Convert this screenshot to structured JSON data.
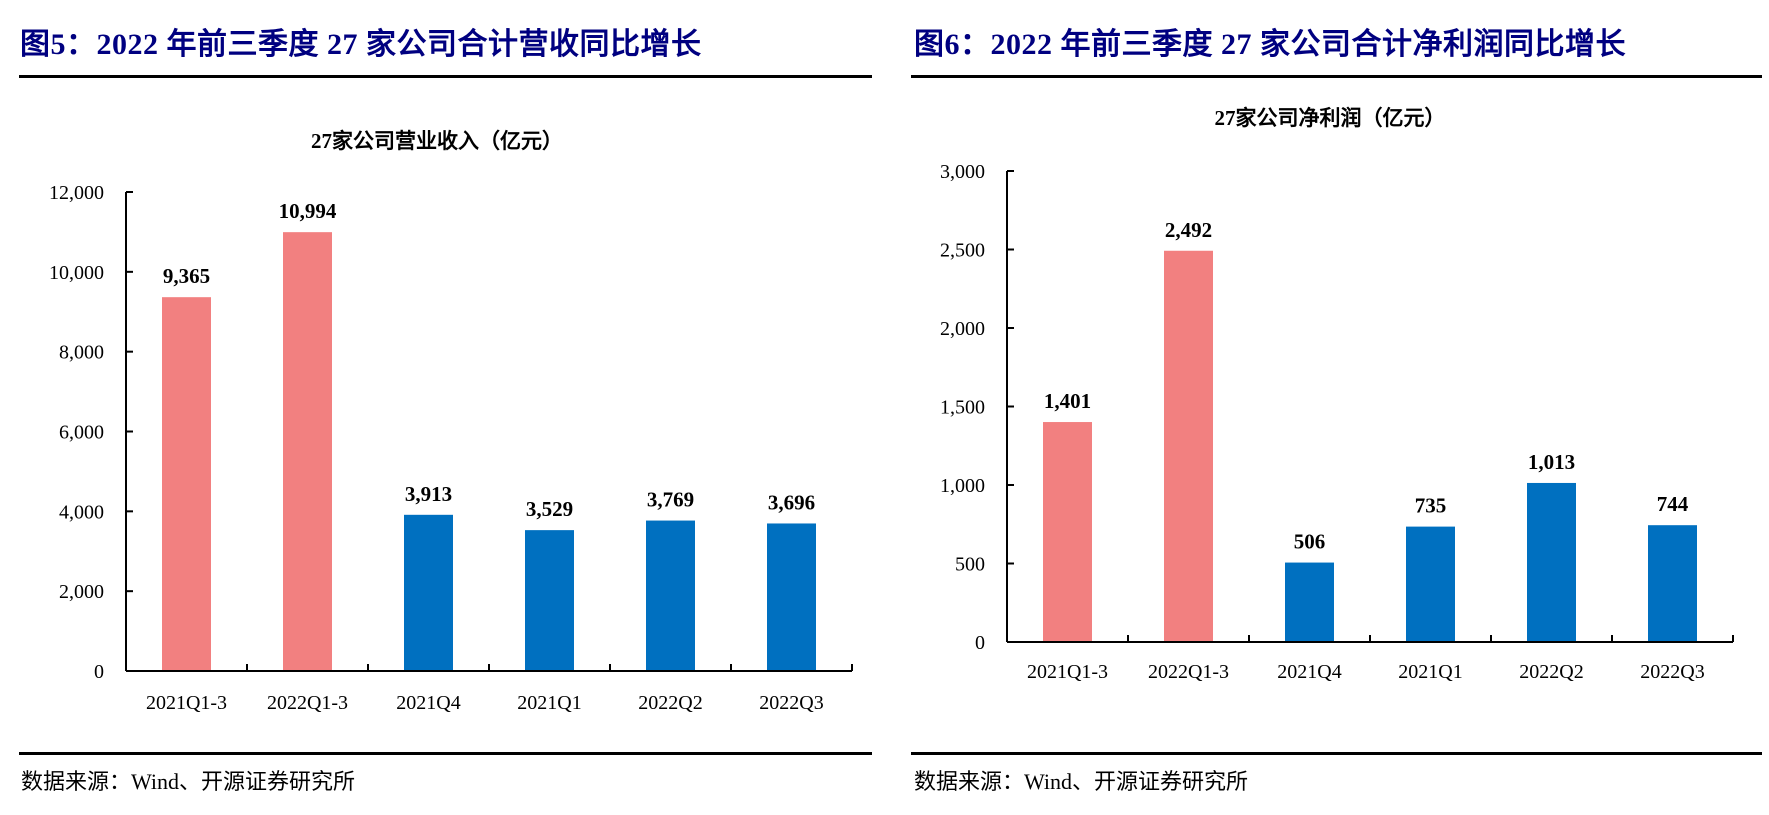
{
  "figures": [
    {
      "figure_title": "图5：2022 年前三季度 27 家公司合计营收同比增长",
      "source": "数据来源：Wind、开源证券研究所"
    },
    {
      "figure_title": "图6：2022 年前三季度 27 家公司合计净利润同比增长",
      "source": "数据来源：Wind、开源证券研究所"
    }
  ],
  "colors": {
    "title": "#000080",
    "cumulative_bar": "#F28080",
    "quarter_bar": "#0070C0"
  },
  "chart_data": [
    {
      "type": "bar",
      "title": "27家公司营业收入（亿元）",
      "xlabel": "",
      "ylabel": "",
      "categories": [
        "2021Q1-3",
        "2022Q1-3",
        "2021Q4",
        "2021Q1",
        "2022Q2",
        "2022Q3"
      ],
      "values": [
        9365,
        10994,
        3913,
        3529,
        3769,
        3696
      ],
      "value_labels": [
        "9,365",
        "10,994",
        "3,913",
        "3,529",
        "3,769",
        "3,696"
      ],
      "bar_color_keys": [
        "cumulative_bar",
        "cumulative_bar",
        "quarter_bar",
        "quarter_bar",
        "quarter_bar",
        "quarter_bar"
      ],
      "ylim": [
        0,
        12000
      ],
      "yticks": [
        0,
        2000,
        4000,
        6000,
        8000,
        10000,
        12000
      ],
      "ytick_labels": [
        "0",
        "2,000",
        "4,000",
        "6,000",
        "8,000",
        "10,000",
        "12,000"
      ],
      "grid": false,
      "legend": "none"
    },
    {
      "type": "bar",
      "title": "27家公司净利润（亿元）",
      "xlabel": "",
      "ylabel": "",
      "categories": [
        "2021Q1-3",
        "2022Q1-3",
        "2021Q4",
        "2021Q1",
        "2022Q2",
        "2022Q3"
      ],
      "values": [
        1401,
        2492,
        506,
        735,
        1013,
        744
      ],
      "value_labels": [
        "1,401",
        "2,492",
        "506",
        "735",
        "1,013",
        "744"
      ],
      "bar_color_keys": [
        "cumulative_bar",
        "cumulative_bar",
        "quarter_bar",
        "quarter_bar",
        "quarter_bar",
        "quarter_bar"
      ],
      "ylim": [
        0,
        3000
      ],
      "yticks": [
        0,
        500,
        1000,
        1500,
        2000,
        2500,
        3000
      ],
      "ytick_labels": [
        "0",
        "500",
        "1,000",
        "1,500",
        "2,000",
        "2,500",
        "3,000"
      ],
      "grid": false,
      "legend": "none"
    }
  ]
}
